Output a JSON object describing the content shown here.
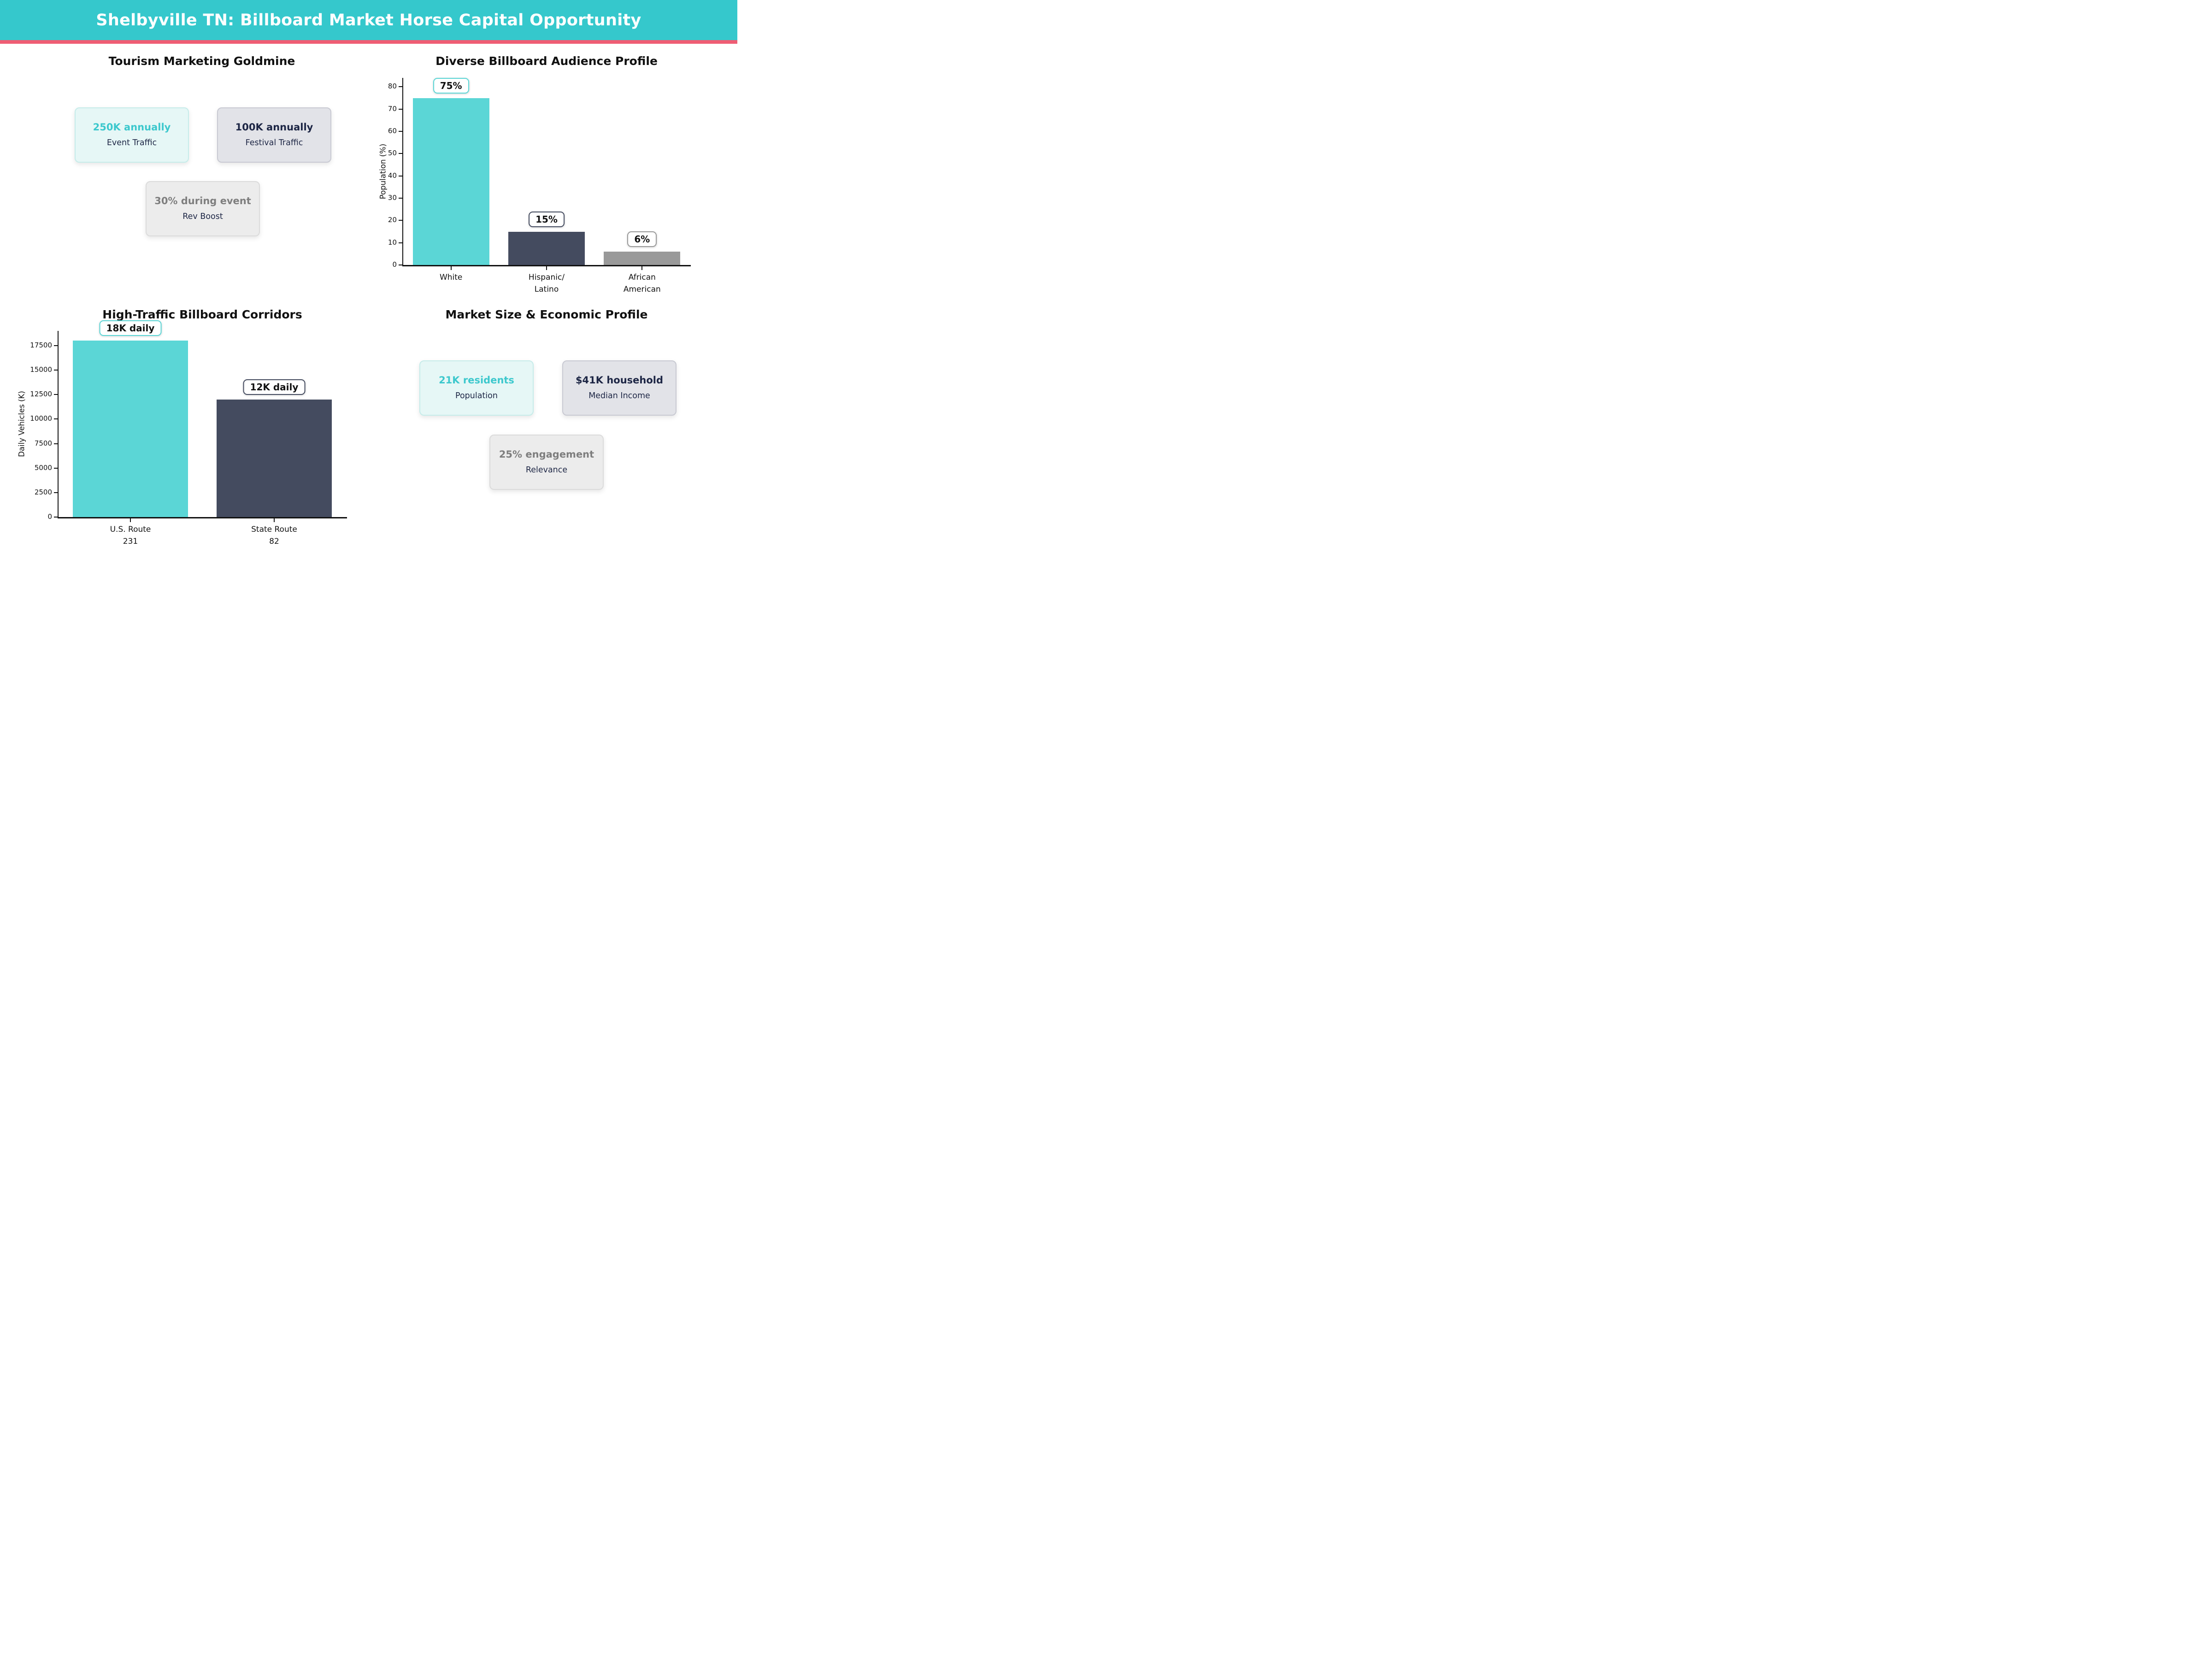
{
  "header": {
    "title": "Shelbyville TN: Billboard Market Horse Capital Opportunity"
  },
  "panels": {
    "tourism": {
      "title": "Tourism Marketing Goldmine",
      "cards": [
        {
          "value": "250K annually",
          "label": "Event Traffic",
          "theme": "teal"
        },
        {
          "value": "100K annually",
          "label": "Festival Traffic",
          "theme": "navy"
        },
        {
          "value": "30% during event",
          "label": "Rev Boost",
          "theme": "gray"
        }
      ]
    },
    "audience": {
      "title": "Diverse Billboard Audience Profile"
    },
    "corridors": {
      "title": "High-Traffic Billboard Corridors"
    },
    "market": {
      "title": "Market Size & Economic Profile",
      "cards": [
        {
          "value": "21K residents",
          "label": "Population",
          "theme": "teal"
        },
        {
          "value": "$41K household",
          "label": "Median Income",
          "theme": "navy"
        },
        {
          "value": "25% engagement",
          "label": "Relevance",
          "theme": "gray"
        }
      ]
    }
  },
  "chart_data": [
    {
      "type": "bar",
      "title": "Diverse Billboard Audience Profile",
      "categories": [
        [
          "White"
        ],
        [
          "Hispanic/",
          "Latino"
        ],
        [
          "African",
          "American"
        ]
      ],
      "values": [
        75,
        15,
        6
      ],
      "value_labels": [
        "75%",
        "15%",
        "6%"
      ],
      "bar_colors": [
        "#5BD6D6",
        "#444B5F",
        "#999999"
      ],
      "xlabel": "",
      "ylabel": "Population (%)",
      "ylim": [
        0,
        84
      ],
      "yticks": [
        0,
        10,
        20,
        30,
        40,
        50,
        60,
        70,
        80
      ],
      "grid": false,
      "legend": null
    },
    {
      "type": "bar",
      "title": "High-Traffic Billboard Corridors",
      "categories": [
        [
          "U.S. Route",
          "231"
        ],
        [
          "State Route",
          "82"
        ]
      ],
      "values": [
        18000,
        12000
      ],
      "value_labels": [
        "18K daily",
        "12K daily"
      ],
      "bar_colors": [
        "#5BD6D6",
        "#444B5F"
      ],
      "xlabel": "",
      "ylabel": "Daily Vehicles (K)",
      "ylim": [
        0,
        19000
      ],
      "yticks": [
        0,
        2500,
        5000,
        7500,
        10000,
        12500,
        15000,
        17500
      ],
      "grid": false,
      "legend": null
    }
  ],
  "colors": {
    "header_bg": "#35C8CC",
    "header_underline": "#EE5D74",
    "bar_teal": "#5BD6D6",
    "bar_navy": "#444B5F",
    "bar_gray": "#999999",
    "teal_text": "#3CC8CD",
    "navy_text": "#1D2645",
    "gray_text": "#7E7E7E",
    "card_teal_bg": "#E6F7F6",
    "card_navy_bg": "#E2E3E8",
    "card_gray_bg": "#ECECEC"
  }
}
